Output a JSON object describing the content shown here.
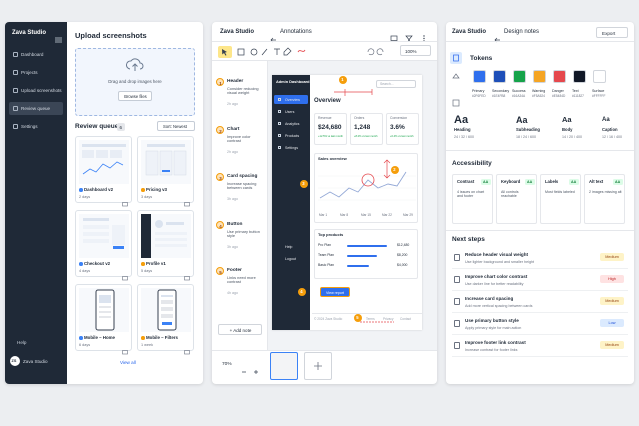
{
  "left": {
    "brand": "Zava Studio",
    "nav": [
      "Dashboard",
      "Projects",
      "Upload screenshots",
      "Review queue",
      "Settings"
    ],
    "help": "Help",
    "avatar": "ZS",
    "user": "Zava Studio",
    "upload_title": "Upload screenshots",
    "dropzone_text": "Drag and drop images here",
    "browse": "Browse files",
    "queue_title": "Review queue",
    "queue_count": 6,
    "sort": "Sort: Newest",
    "cards": [
      {
        "name": "Dashboard v2",
        "meta": "2 days"
      },
      {
        "name": "Pricing v3",
        "meta": "3 days"
      },
      {
        "name": "Checkout v2",
        "meta": "4 days"
      },
      {
        "name": "Profile v1",
        "meta": "5 days"
      },
      {
        "name": "Mobile – Home",
        "meta": "6 days"
      },
      {
        "name": "Mobile – Filters",
        "meta": "1 week"
      }
    ],
    "view_all": "View all"
  },
  "middle": {
    "brand": "Zava Studio",
    "back": "Annotations",
    "zoom": "100%",
    "notes": [
      {
        "num": 1,
        "title": "Header",
        "desc": "Consider reducing visual weight",
        "meta": "2h ago"
      },
      {
        "num": 2,
        "title": "Chart",
        "desc": "Improve color contrast",
        "meta": "2h ago"
      },
      {
        "num": 3,
        "title": "Card spacing",
        "desc": "Increase spacing between cards",
        "meta": "3h ago"
      },
      {
        "num": 4,
        "title": "Button",
        "desc": "Use primary button style",
        "meta": "3h ago"
      },
      {
        "num": 5,
        "title": "Footer",
        "desc": "Links need more contrast",
        "meta": "4h ago"
      }
    ],
    "add_note": "+ Add note",
    "canvas_zoom": "70%",
    "mock": {
      "brand": "Admin Dashboard",
      "menu": [
        "Overview",
        "Users",
        "Analytics",
        "Products",
        "Settings"
      ],
      "menu_bottom": [
        "Help",
        "Logout"
      ],
      "search": "Search...",
      "heading": "Overview",
      "stats": [
        {
          "label": "Revenue",
          "value": "$24,680",
          "sub": "+12.5% vs last month"
        },
        {
          "label": "Orders",
          "value": "1,248",
          "sub": "+8.2% vs last month"
        },
        {
          "label": "Conversion",
          "value": "3.6%",
          "sub": "+0.4% vs last month"
        }
      ],
      "chart_title": "Sales overview",
      "chart_x": [
        "Mar 1",
        "Mar 8",
        "Mar 15",
        "Mar 22",
        "Mar 29"
      ],
      "products_title": "Top products",
      "products": [
        {
          "name": "Pro Plan",
          "value": "$12,480"
        },
        {
          "name": "Team Plan",
          "value": "$8,200"
        },
        {
          "name": "Basic Plan",
          "value": "$4,000"
        }
      ],
      "button": "View report",
      "footer": "© 2024 Zava Studio",
      "links": [
        "Terms",
        "Privacy",
        "Contact"
      ]
    }
  },
  "right": {
    "brand": "Zava Studio",
    "back": "Design notes",
    "export": "Export",
    "tokens_title": "Tokens",
    "swatches": [
      {
        "name": "Primary",
        "hex": "#2F6FED",
        "color": "#2f6fed"
      },
      {
        "name": "Secondary",
        "hex": "#1E4FB8",
        "color": "#1e4fb8"
      },
      {
        "name": "Success",
        "hex": "#16A34A",
        "color": "#16a34a"
      },
      {
        "name": "Warning",
        "hex": "#F5A524",
        "color": "#f5a524"
      },
      {
        "name": "Danger",
        "hex": "#E5484D",
        "color": "#e5484d"
      },
      {
        "name": "Text",
        "hex": "#111827",
        "color": "#111827"
      },
      {
        "name": "Surface",
        "hex": "#FFFFFF",
        "color": "#ffffff"
      }
    ],
    "type_sample": "Aa",
    "typography": [
      {
        "name": "Heading",
        "size": "24 / 32 / 600"
      },
      {
        "name": "Subheading",
        "size": "18 / 24 / 600"
      },
      {
        "name": "Body",
        "size": "14 / 20 / 400"
      },
      {
        "name": "Caption",
        "size": "12 / 16 / 400"
      }
    ],
    "a11y_title": "Accessibility",
    "a11y": [
      {
        "title": "Contrast",
        "badge": "AA",
        "desc": "4 issues on chart and footer"
      },
      {
        "title": "Keyboard",
        "badge": "AA",
        "desc": "All controls reachable"
      },
      {
        "title": "Labels",
        "badge": "AA",
        "desc": "Most fields labeled"
      },
      {
        "title": "Alt text",
        "badge": "AA",
        "desc": "2 images missing alt"
      }
    ],
    "steps_title": "Next steps",
    "steps": [
      {
        "title": "Reduce header visual weight",
        "desc": "Use lighter background and smaller height",
        "tag": "Medium"
      },
      {
        "title": "Improve chart color contrast",
        "desc": "Use darker line for better readability",
        "tag": "High"
      },
      {
        "title": "Increase card spacing",
        "desc": "Add more vertical spacing between cards",
        "tag": "Medium"
      },
      {
        "title": "Use primary button style",
        "desc": "Apply primary style for main action",
        "tag": "Low"
      },
      {
        "title": "Improve footer link contrast",
        "desc": "Increase contrast for footer links",
        "tag": "Medium"
      }
    ]
  }
}
